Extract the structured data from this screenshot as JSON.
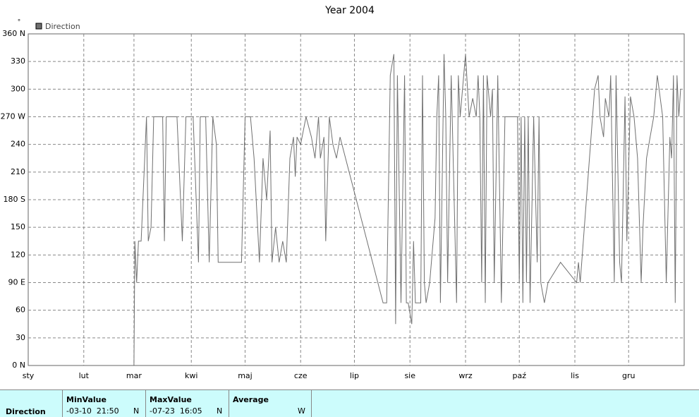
{
  "chart_data": {
    "type": "line",
    "title": "Year 2004",
    "y_unit": "°",
    "xlim": [
      0,
      366
    ],
    "xticks": [
      {
        "value": 0,
        "label": "sty"
      },
      {
        "value": 31,
        "label": "lut"
      },
      {
        "value": 59,
        "label": "mar"
      },
      {
        "value": 91,
        "label": "kwi"
      },
      {
        "value": 121,
        "label": "maj"
      },
      {
        "value": 152,
        "label": "cze"
      },
      {
        "value": 182,
        "label": "lip"
      },
      {
        "value": 213,
        "label": "sie"
      },
      {
        "value": 244,
        "label": "wrz"
      },
      {
        "value": 274,
        "label": "paź"
      },
      {
        "value": 305,
        "label": "lis"
      },
      {
        "value": 335,
        "label": "gru"
      }
    ],
    "ylim": [
      0,
      360
    ],
    "yticks": [
      {
        "value": 0,
        "label": "0 N"
      },
      30,
      60,
      {
        "value": 90,
        "label": "90 E"
      },
      120,
      150,
      {
        "value": 180,
        "label": "180 S"
      },
      210,
      240,
      {
        "value": 270,
        "label": "270 W"
      },
      300,
      330,
      {
        "value": 360,
        "label": "360 N"
      }
    ],
    "grid": true,
    "series": [
      {
        "name": "Direction",
        "color": "#707070",
        "x": [
          59,
          59.5,
          60.5,
          61.5,
          63,
          66,
          67,
          68.5,
          70,
          72,
          75,
          76,
          77,
          80,
          83,
          85,
          86,
          88,
          90,
          92,
          95,
          96,
          99,
          101,
          103,
          105,
          106,
          119,
          121,
          124,
          126,
          129,
          131,
          133,
          135,
          136,
          138,
          140,
          142,
          144,
          146,
          148,
          149,
          150,
          152,
          155,
          158,
          160,
          162,
          163,
          165,
          166,
          168,
          170,
          172,
          174,
          198,
          200,
          202,
          204,
          205,
          206,
          208,
          210,
          211,
          212,
          214,
          215,
          216,
          217,
          219,
          220,
          221,
          222,
          224,
          227,
          228,
          229,
          230,
          232,
          233,
          234,
          236,
          239,
          240,
          241,
          244,
          246,
          248,
          250,
          251,
          252,
          253,
          254,
          255,
          256,
          258,
          259,
          260,
          262,
          264,
          266,
          268,
          270,
          272,
          273,
          274,
          275,
          276,
          277,
          278,
          279,
          280,
          282,
          284,
          285,
          286,
          288,
          290,
          297,
          306,
          307,
          308,
          316,
          318,
          319,
          321,
          322,
          324,
          325,
          327,
          328,
          330,
          331,
          333,
          334,
          336,
          338,
          340,
          342,
          343,
          345,
          347,
          349,
          351,
          352,
          354,
          356,
          358,
          359,
          360,
          361,
          362,
          363,
          364
        ],
        "values": [
          0,
          135,
          90,
          135,
          135,
          270,
          135,
          150,
          270,
          270,
          270,
          135,
          270,
          270,
          270,
          180,
          135,
          270,
          270,
          270,
          112,
          270,
          270,
          112,
          270,
          240,
          112,
          112,
          270,
          270,
          225,
          112,
          225,
          180,
          255,
          112,
          150,
          112,
          135,
          112,
          225,
          248,
          205,
          248,
          240,
          270,
          248,
          225,
          270,
          225,
          248,
          135,
          270,
          240,
          225,
          248,
          68,
          68,
          315,
          338,
          45,
          315,
          68,
          315,
          68,
          68,
          45,
          135,
          68,
          68,
          68,
          315,
          90,
          68,
          90,
          160,
          270,
          315,
          68,
          338,
          270,
          90,
          315,
          68,
          315,
          270,
          338,
          270,
          290,
          270,
          315,
          270,
          90,
          315,
          68,
          315,
          270,
          300,
          90,
          315,
          68,
          270,
          270,
          270,
          270,
          270,
          90,
          270,
          68,
          270,
          90,
          270,
          68,
          270,
          112,
          270,
          90,
          68,
          90,
          112,
          90,
          112,
          90,
          300,
          315,
          270,
          248,
          290,
          270,
          315,
          90,
          315,
          112,
          90,
          292,
          135,
          292,
          270,
          225,
          90,
          150,
          225,
          248,
          270,
          315,
          300,
          270,
          90,
          248,
          225,
          315,
          68,
          315,
          270,
          300
        ]
      }
    ],
    "table": {
      "columns": [
        "MinValue",
        "MaxValue",
        "Average"
      ],
      "rows": [
        {
          "name": "Direction",
          "min_date": "-03-10  21:50",
          "min_dir": "N",
          "max_date": "-07-23  16:05",
          "max_dir": "N",
          "avg_dir": "W"
        }
      ]
    }
  }
}
